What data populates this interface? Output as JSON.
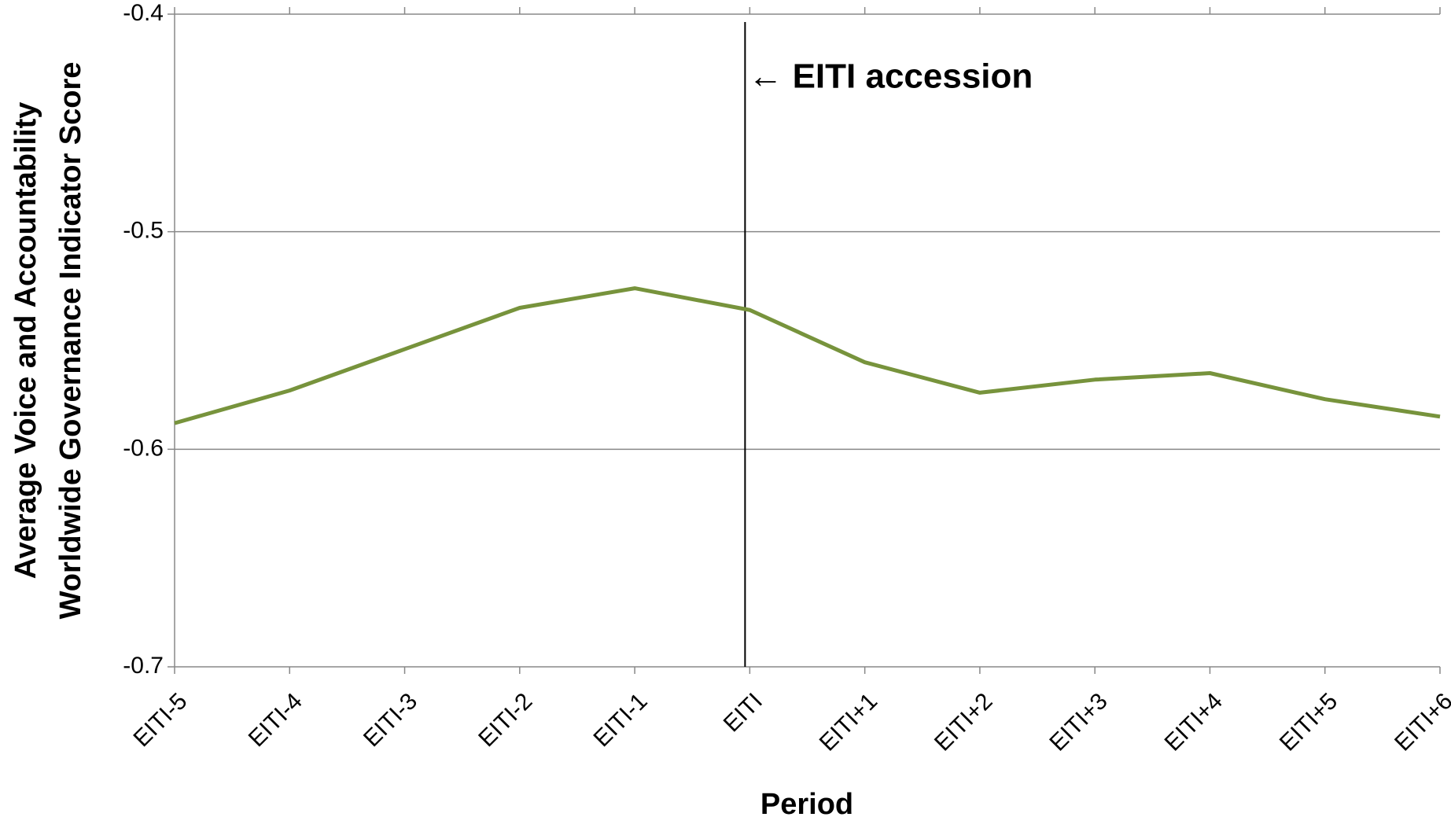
{
  "chart_data": {
    "type": "line",
    "y_label": [
      "Average Voice and Accountability",
      "Worldwide Governance Indicator Score"
    ],
    "x_label": "Period",
    "categories": [
      "EITI-5",
      "EITI-4",
      "EITI-3",
      "EITI-2",
      "EITI-1",
      "EITI",
      "EITI+1",
      "EITI+2",
      "EITI+3",
      "EITI+4",
      "EITI+5",
      "EITI+6"
    ],
    "series": [
      {
        "color": "#77933c",
        "values": [
          -0.588,
          -0.573,
          -0.554,
          -0.535,
          -0.526,
          -0.536,
          -0.56,
          -0.574,
          -0.568,
          -0.565,
          -0.577,
          -0.585
        ]
      }
    ],
    "ylim": [
      -0.7,
      -0.4
    ],
    "yticks": [
      -0.7,
      -0.6,
      -0.5,
      -0.4
    ],
    "grid": true,
    "annotation": {
      "text": "← EITI accession",
      "category": "EITI"
    }
  }
}
